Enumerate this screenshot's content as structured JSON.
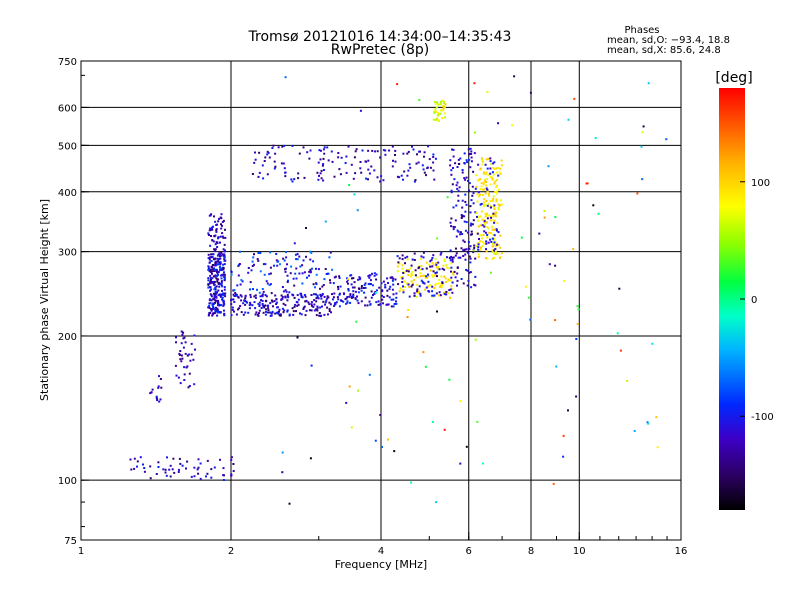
{
  "chart_data": {
    "type": "scatter",
    "title": "Tromsø 20121016 14:34:00–14:35:43",
    "subtitle": "RwPretec (8p)",
    "xlabel": "Frequency [MHz]",
    "ylabel": "Stationary phase Virtual Height [km]",
    "x_scale": "log",
    "y_scale": "log",
    "xlim": [
      1,
      16
    ],
    "ylim": [
      75,
      750
    ],
    "x_ticks": [
      1,
      2,
      4,
      6,
      8,
      10,
      16
    ],
    "y_ticks": [
      75,
      100,
      200,
      300,
      400,
      500,
      600,
      750
    ],
    "x_gridlines": [
      2,
      4,
      6,
      8,
      10
    ],
    "y_gridlines": [
      100,
      200,
      300,
      400,
      500,
      600
    ],
    "grid": true,
    "phase_stats": {
      "heading": "Phases",
      "o_line": "mean, sd,O: −93.4, 18.8",
      "x_line": "mean, sd,X:  85.6, 24.8"
    },
    "colorbar": {
      "label": "[deg]",
      "ticks": [
        100,
        0,
        -100
      ],
      "range": [
        -180,
        180
      ],
      "colormap": "rainbow",
      "low_color": "#000000",
      "high_color": "#ff0000"
    },
    "point_groups": [
      {
        "freq": [
          1.8,
          1.95
        ],
        "height": [
          220,
          300
        ],
        "phase": [
          -150,
          -80
        ],
        "count": 260
      },
      {
        "freq": [
          1.8,
          1.95
        ],
        "height": [
          300,
          360
        ],
        "phase": [
          -150,
          -90
        ],
        "count": 60
      },
      {
        "freq": [
          2.0,
          3.2
        ],
        "height": [
          220,
          245
        ],
        "phase": [
          -150,
          -90
        ],
        "count": 220
      },
      {
        "freq": [
          2.0,
          3.2
        ],
        "height": [
          245,
          300
        ],
        "phase": [
          -150,
          -60
        ],
        "count": 120
      },
      {
        "freq": [
          3.2,
          4.3
        ],
        "height": [
          230,
          270
        ],
        "phase": [
          -150,
          -80
        ],
        "count": 150
      },
      {
        "freq": [
          4.3,
          5.6
        ],
        "height": [
          240,
          290
        ],
        "phase": [
          70,
          110
        ],
        "count": 110
      },
      {
        "freq": [
          4.3,
          5.6
        ],
        "height": [
          240,
          300
        ],
        "phase": [
          -150,
          -90
        ],
        "count": 90
      },
      {
        "freq": [
          5.5,
          6.2
        ],
        "height": [
          250,
          500
        ],
        "phase": [
          -150,
          -90
        ],
        "count": 150
      },
      {
        "freq": [
          6.2,
          7.0
        ],
        "height": [
          290,
          470
        ],
        "phase": [
          70,
          110
        ],
        "count": 180
      },
      {
        "freq": [
          6.2,
          6.9
        ],
        "height": [
          300,
          470
        ],
        "phase": [
          -130,
          -90
        ],
        "count": 50
      },
      {
        "freq": [
          2.2,
          5.2
        ],
        "height": [
          420,
          500
        ],
        "phase": [
          -150,
          -90
        ],
        "count": 150
      },
      {
        "freq": [
          5.1,
          5.4
        ],
        "height": [
          560,
          620
        ],
        "phase": [
          40,
          110
        ],
        "count": 40
      },
      {
        "freq": [
          1.55,
          1.7
        ],
        "height": [
          155,
          205
        ],
        "phase": [
          -150,
          -100
        ],
        "count": 40
      },
      {
        "freq": [
          1.35,
          1.45
        ],
        "height": [
          145,
          165
        ],
        "phase": [
          -150,
          -100
        ],
        "count": 15
      },
      {
        "freq": [
          1.25,
          2.05
        ],
        "height": [
          100,
          112
        ],
        "phase": [
          -150,
          -90
        ],
        "count": 60
      },
      {
        "freq": [
          2.5,
          15.0
        ],
        "height": [
          85,
          700
        ],
        "phase": [
          -180,
          180
        ],
        "count": 110
      }
    ]
  }
}
